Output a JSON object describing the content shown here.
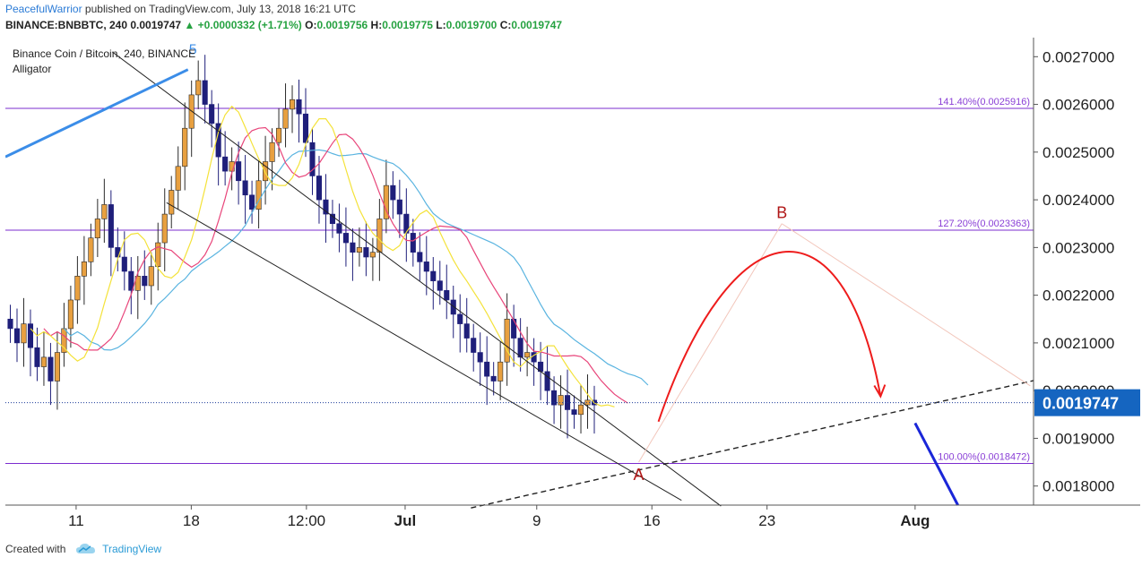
{
  "header": {
    "author": "PeacefulWarrior",
    "published": " published on TradingView.com, July 13, 2018 16:21 UTC",
    "symbol": "BINANCE:BNBBTC, 240",
    "last": "0.0019747",
    "change": "+0.0000332 (+1.71%)",
    "o_label": "O:",
    "o": "0.0019756",
    "h_label": "H:",
    "h": "0.0019775",
    "l_label": "L:",
    "l": "0.0019700",
    "c_label": "C:",
    "c": "0.0019747"
  },
  "footer": {
    "created_with": "Created with",
    "brand": "TradingView"
  },
  "colors": {
    "candle_up": "#2a2a2a",
    "candle_down": "#1f1f7a",
    "candle_body_up": "#e8a040",
    "jaw": "#5ab4e0",
    "teeth": "#e8457a",
    "lips": "#f4e23a",
    "fib": "#7b2ccf",
    "arrow": "#ee1c1c",
    "label_red": "#b01717",
    "price_tag": "#1565c0",
    "wave_line": "#3b8de8"
  },
  "chart_data": {
    "type": "candlestick",
    "title": "Binance Coin / Bitcoin, 240, BINANCE",
    "indicator": "Alligator",
    "ylim": [
      0.00176,
      0.00274
    ],
    "y_ticks": [
      "0.0027000",
      "0.0026000",
      "0.0025000",
      "0.0024000",
      "0.0023000",
      "0.0022000",
      "0.0021000",
      "0.0020000",
      "0.0019000",
      "0.0018000"
    ],
    "y_tick_values": [
      0.0027,
      0.0026,
      0.0025,
      0.0024,
      0.0023,
      0.0022,
      0.0021,
      0.002,
      0.0019,
      0.0018
    ],
    "x_ticks": [
      "11",
      "18",
      "12:00",
      "Jul",
      "9",
      "16",
      "23",
      "Aug"
    ],
    "x_tick_days": [
      11,
      18,
      25,
      31,
      39,
      46,
      53,
      62
    ],
    "x_range_days": [
      6.7,
      69.2
    ],
    "last_price": 0.0019747,
    "last_price_label": "0.0019747",
    "fib_levels": [
      {
        "label": "141.40%(0.0025916)",
        "value": 0.0025916
      },
      {
        "label": "127.20%(0.0023363)",
        "value": 0.0023363
      },
      {
        "label": "100.00%(0.0018472)",
        "value": 0.0018472
      }
    ],
    "wave_label": "5",
    "point_labels": {
      "A": "A",
      "B": "B"
    },
    "closes": [
      0.00213,
      0.0021,
      0.00214,
      0.00209,
      0.00205,
      0.00207,
      0.00202,
      0.00208,
      0.00213,
      0.00219,
      0.00224,
      0.00227,
      0.00232,
      0.00236,
      0.00239,
      0.0023,
      0.00228,
      0.00225,
      0.00221,
      0.00224,
      0.00222,
      0.00226,
      0.00231,
      0.00237,
      0.00242,
      0.00247,
      0.00255,
      0.00262,
      0.00265,
      0.0026,
      0.00256,
      0.00249,
      0.00246,
      0.00248,
      0.00244,
      0.00241,
      0.00238,
      0.00244,
      0.00248,
      0.00252,
      0.00255,
      0.00259,
      0.00261,
      0.00258,
      0.00252,
      0.00245,
      0.0024,
      0.00237,
      0.00235,
      0.00233,
      0.00231,
      0.00229,
      0.0023,
      0.00228,
      0.00229,
      0.00236,
      0.00243,
      0.0024,
      0.00237,
      0.00233,
      0.00229,
      0.00227,
      0.00225,
      0.00223,
      0.00221,
      0.00219,
      0.00216,
      0.00214,
      0.00211,
      0.00208,
      0.00206,
      0.00203,
      0.00202,
      0.00206,
      0.00215,
      0.00211,
      0.00207,
      0.00208,
      0.00206,
      0.00204,
      0.002,
      0.00197,
      0.00199,
      0.00196,
      0.00195,
      0.00197,
      0.00198,
      0.00197
    ]
  }
}
